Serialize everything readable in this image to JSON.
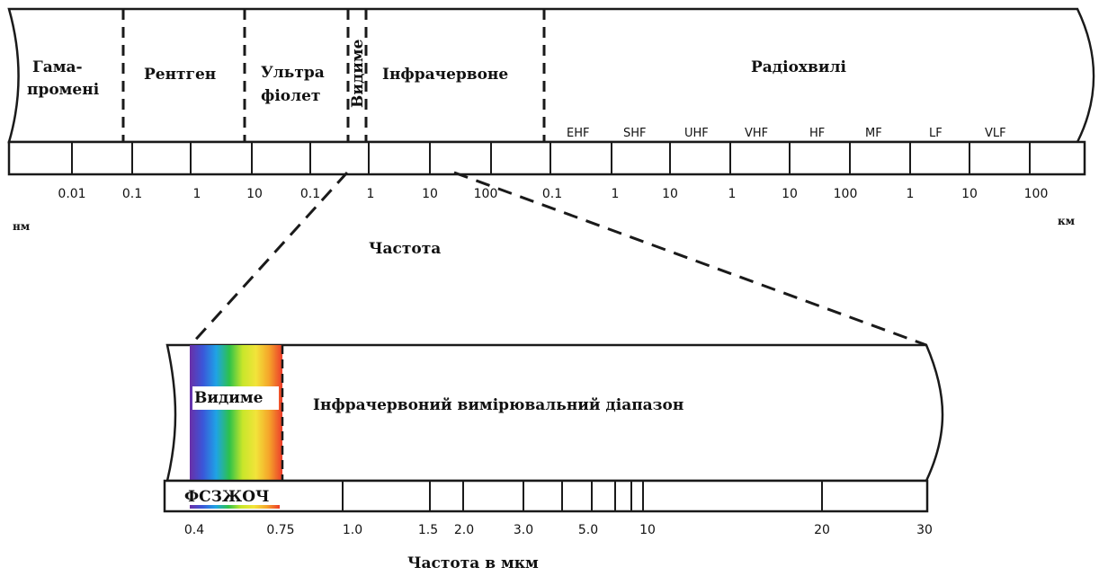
{
  "top": {
    "bands": {
      "gamma": [
        "Гама-",
        "промені"
      ],
      "xray": "Рентген",
      "uv": [
        "Ультра",
        "фіолет"
      ],
      "visible": "Видиме",
      "ir": "Інфрачервоне",
      "radio": "Радіохвилі"
    },
    "radio_subbands": [
      "EHF",
      "SHF",
      "UHF",
      "VHF",
      "HF",
      "MF",
      "LF",
      "VLF"
    ],
    "tick_labels": [
      "0.01",
      "0.1",
      "1",
      "10",
      "0.1",
      "1",
      "10",
      "100",
      "0.1",
      "1",
      "10",
      "1",
      "10",
      "100",
      "1",
      "10",
      "100"
    ],
    "unit_left": "нм",
    "unit_right": "км",
    "axis_title": "Частота"
  },
  "bottom": {
    "visible_label": "Видиме",
    "ir_label": "Інфрачервоний вимірювальний діапазон",
    "colors_label": "ФСЗЖОЧ",
    "tick_labels": [
      "0.4",
      "0.75",
      "1.0",
      "1.5",
      "2.0",
      "3.0",
      "5.0",
      "10",
      "20",
      "30"
    ],
    "axis_title": "Частота в мкм",
    "spectrum_colors": [
      "#6a2fa8",
      "#3a57d9",
      "#1fa3e6",
      "#2ec24a",
      "#c8e62a",
      "#f2e43a",
      "#f5a42a",
      "#ec3b2a"
    ]
  }
}
